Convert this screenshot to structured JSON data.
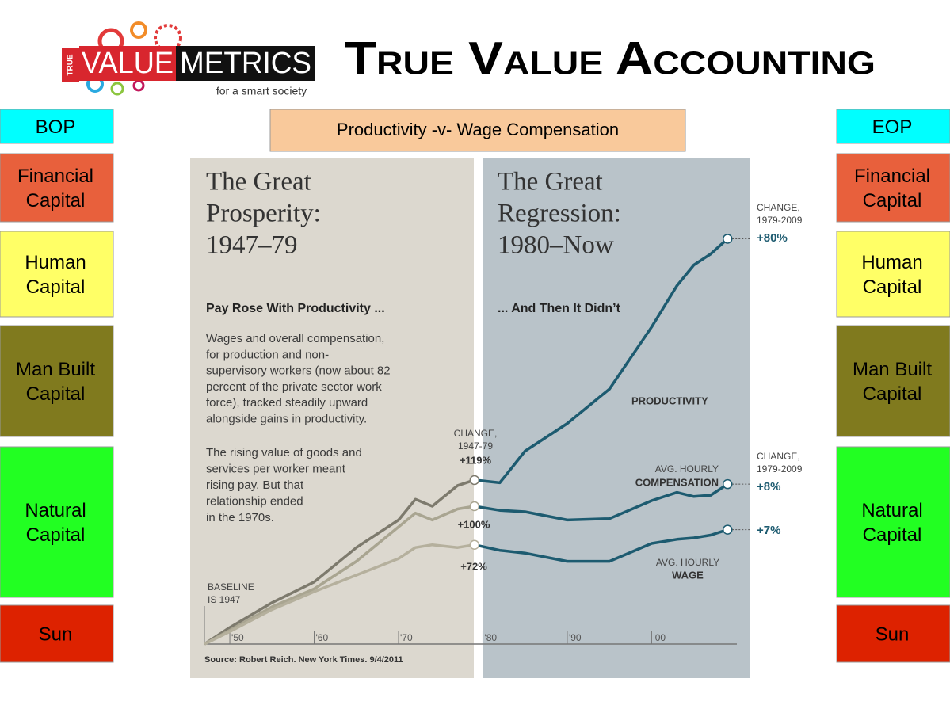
{
  "header": {
    "logo_true": "TRUE",
    "logo_value": "VALUE",
    "logo_metrics": "METRICS",
    "logo_tagline": "for a smart society",
    "title": "True Value Accounting"
  },
  "left_column": [
    {
      "label": [
        "BOP"
      ],
      "color": "#00ffff"
    },
    {
      "label": [
        "Financial",
        "Capital"
      ],
      "color": "#e8603c"
    },
    {
      "label": [
        "Human",
        "Capital"
      ],
      "color": "#ffff66"
    },
    {
      "label": [
        "Man Built",
        "Capital"
      ],
      "color": "#807a1e"
    },
    {
      "label": [
        "Natural",
        "Capital"
      ],
      "color": "#22ff22"
    },
    {
      "label": [
        "Sun"
      ],
      "color": "#dd2200"
    }
  ],
  "right_column": [
    {
      "label": [
        "EOP"
      ],
      "color": "#00ffff"
    },
    {
      "label": [
        "Financial",
        "Capital"
      ],
      "color": "#e8603c"
    },
    {
      "label": [
        "Human",
        "Capital"
      ],
      "color": "#ffff66"
    },
    {
      "label": [
        "Man Built",
        "Capital"
      ],
      "color": "#807a1e"
    },
    {
      "label": [
        "Natural",
        "Capital"
      ],
      "color": "#22ff22"
    },
    {
      "label": [
        "Sun"
      ],
      "color": "#dd2200"
    }
  ],
  "chart_heading": "Productivity -v- Wage Compensation",
  "chart_data": {
    "type": "line",
    "left_title": [
      "The Great",
      "Prosperity:",
      "1947–79"
    ],
    "right_title": [
      "The Great",
      "Regression:",
      "1980–Now"
    ],
    "left_subtitle": "Pay Rose With Productivity ...",
    "right_subtitle": "... And Then It Didn’t",
    "paragraph_1": [
      "Wages and overall compensation,",
      "for production and non-",
      "supervisory workers (now about 82",
      "percent of the private sector work",
      "force), tracked steadily upward",
      "alongside gains in productivity."
    ],
    "paragraph_2": [
      "The rising value of goods and",
      "services per worker meant",
      "rising pay. But that",
      "relationship ended",
      "in the 1970s."
    ],
    "baseline_note": [
      "BASELINE",
      "IS 1947"
    ],
    "source": "Source: Robert Reich. New York Times. 9/4/2011",
    "annotations": [
      "CHANGE,",
      "1947-79",
      "+119%",
      "+100%",
      "+72%",
      "CHANGE,",
      "1979-2009",
      "+80%",
      "AVG. HOURLY",
      "CHANGE,",
      "1979-2009",
      "+8%",
      "+7%",
      "AVG. HOURLY"
    ],
    "x": [
      1947,
      1950,
      1955,
      1960,
      1965,
      1970,
      1972,
      1974,
      1977,
      1979,
      1982,
      1985,
      1990,
      1995,
      2000,
      2003,
      2005,
      2007,
      2009
    ],
    "split_x": 1979,
    "series": [
      {
        "name": "PRODUCTIVITY",
        "color": "#1d5b70",
        "early_color": "#7d7a6d",
        "values": [
          0,
          12,
          30,
          45,
          70,
          90,
          105,
          100,
          115,
          119,
          117,
          140,
          160,
          185,
          230,
          260,
          275,
          283,
          294
        ]
      },
      {
        "name": "COMPENSATION",
        "color": "#1d5b70",
        "early_color": "#a9a591",
        "values": [
          0,
          10,
          27,
          40,
          60,
          85,
          95,
          90,
          98,
          100,
          97,
          96,
          90,
          91,
          104,
          110,
          107,
          108,
          116
        ]
      },
      {
        "name": "WAGE",
        "color": "#1d5b70",
        "early_color": "#b5b09d",
        "values": [
          0,
          9,
          25,
          38,
          50,
          62,
          70,
          72,
          70,
          72,
          68,
          66,
          60,
          60,
          73,
          76,
          77,
          79,
          83
        ]
      }
    ],
    "xlim": [
      1945.3,
      2011.7
    ],
    "ylim": [
      0,
      350
    ],
    "xticks": [
      {
        "value": 1950,
        "label": "'50"
      },
      {
        "value": 1960,
        "label": "'60"
      },
      {
        "value": 1970,
        "label": "'70"
      },
      {
        "value": 1980,
        "label": "'80"
      },
      {
        "value": 1990,
        "label": "'90"
      },
      {
        "value": 2000,
        "label": "'00"
      }
    ]
  }
}
